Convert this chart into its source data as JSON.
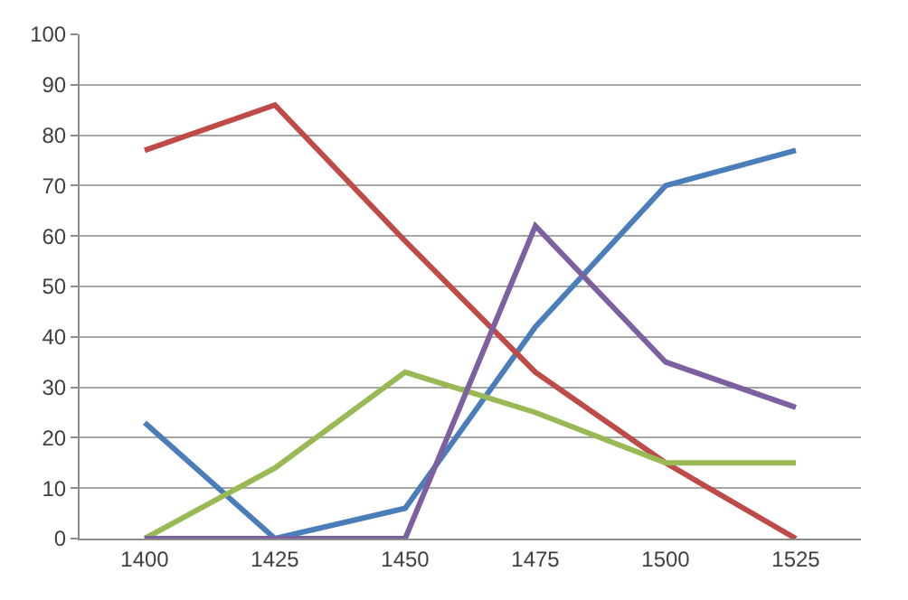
{
  "chart_data": {
    "type": "line",
    "categories": [
      "1400",
      "1425",
      "1450",
      "1475",
      "1500",
      "1525"
    ],
    "series": [
      {
        "color": "#4a7ebb",
        "values": [
          23,
          0,
          6,
          42,
          70,
          77
        ]
      },
      {
        "color": "#be4b48",
        "values": [
          77,
          86,
          59,
          33,
          15,
          0
        ]
      },
      {
        "color": "#98b954",
        "values": [
          0,
          14,
          33,
          25,
          15,
          15
        ]
      },
      {
        "color": "#7d60a0",
        "values": [
          0,
          0,
          0,
          62,
          35,
          26
        ]
      }
    ],
    "ylim": [
      0,
      100
    ],
    "yticks": [
      0,
      10,
      20,
      30,
      40,
      50,
      60,
      70,
      80,
      90,
      100
    ],
    "grid": "y",
    "marker": "none",
    "line_style": "solid"
  }
}
